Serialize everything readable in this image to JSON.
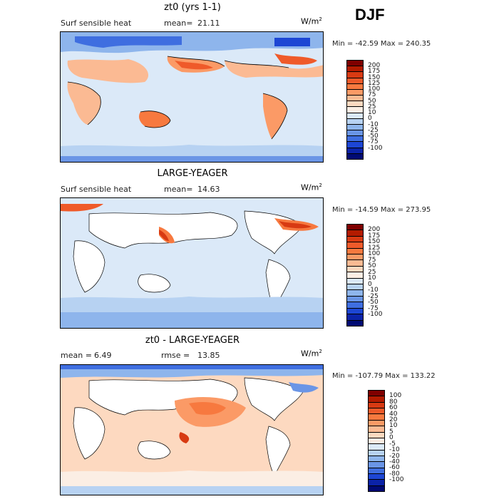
{
  "season": "DJF",
  "panels": [
    {
      "title": "zt0 (yrs 1-1)",
      "left_label": "Surf sensible heat",
      "stat_label": "mean=",
      "stat_value": "21.11",
      "units_base": "W/m",
      "units_exp": "2",
      "minmax": "Min = -42.59  Max = 240.35",
      "colorbar": {
        "colors": [
          "#7f0000",
          "#b31b00",
          "#d83a12",
          "#ef5a2a",
          "#f7793f",
          "#fb9a66",
          "#fbba93",
          "#fdd9c0",
          "#fbeee4",
          "#dbe9f8",
          "#b7d2f2",
          "#8eb5ec",
          "#6a95e6",
          "#3f6ee0",
          "#1d46d4",
          "#0b23a8",
          "#000a73"
        ],
        "labels": [
          "200",
          "175",
          "150",
          "125",
          "100",
          "75",
          "50",
          "25",
          "10",
          "0",
          "-10",
          "-25",
          "-50",
          "-75",
          "-100"
        ]
      }
    },
    {
      "title": "LARGE-YEAGER",
      "left_label": "Surf sensible heat",
      "stat_label": "mean=",
      "stat_value": "14.63",
      "units_base": "W/m",
      "units_exp": "2",
      "minmax": "Min = -14.59  Max = 273.95",
      "colorbar": {
        "colors": [
          "#7f0000",
          "#b31b00",
          "#d83a12",
          "#ef5a2a",
          "#f7793f",
          "#fb9a66",
          "#fbba93",
          "#fdd9c0",
          "#fbeee4",
          "#dbe9f8",
          "#b7d2f2",
          "#8eb5ec",
          "#6a95e6",
          "#3f6ee0",
          "#1d46d4",
          "#0b23a8",
          "#000a73"
        ],
        "labels": [
          "200",
          "175",
          "150",
          "125",
          "100",
          "75",
          "50",
          "25",
          "10",
          "0",
          "-10",
          "-25",
          "-50",
          "-75",
          "-100"
        ]
      }
    },
    {
      "title": "zt0 - LARGE-YEAGER",
      "left_label": "mean =",
      "left_value": "6.49",
      "stat_label": "rmse =",
      "stat_value": "13.85",
      "units_base": "W/m",
      "units_exp": "2",
      "minmax": "Min = -107.79  Max = 133.22",
      "colorbar": {
        "colors": [
          "#7f0000",
          "#b31b00",
          "#d83a12",
          "#ef5a2a",
          "#f7793f",
          "#fb9a66",
          "#fbba93",
          "#fdd9c0",
          "#fbeee4",
          "#dbe9f8",
          "#b7d2f2",
          "#8eb5ec",
          "#6a95e6",
          "#3f6ee0",
          "#1d46d4",
          "#0b23a8",
          "#000a73"
        ],
        "labels": [
          "100",
          "80",
          "60",
          "40",
          "20",
          "10",
          "5",
          "0",
          "-5",
          "-10",
          "-20",
          "-40",
          "-60",
          "-80",
          "-100"
        ]
      }
    }
  ]
}
